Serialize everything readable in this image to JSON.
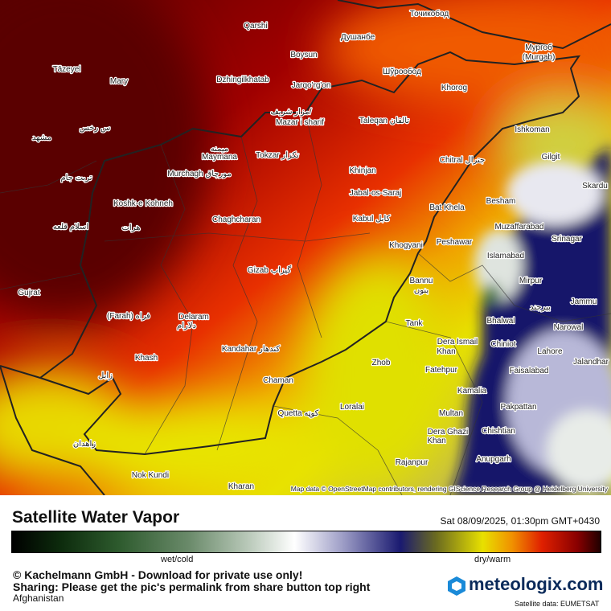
{
  "map": {
    "attribution": "Map data © OpenStreetMap contributors, rendering GIScience Research Group @ Heidelberg University",
    "places": [
      "Qarshi",
      "Душанбе",
      "Точикобод",
      "Boysun",
      "Мургоб",
      "(Murgab)",
      "Tāzeyel",
      "Mary",
      "Dzhingilkhatab",
      "Jarqo'rg'on",
      "Шўрообод",
      "Khorog",
      "مزار شریف/",
      "Mazar i sharif",
      "Taleqan تالقان",
      "Ishkoman",
      "مشهد",
      "س رخس",
      "میمنه",
      "Maymana",
      "Tokzar تکزار",
      "Chitral جترال",
      "Gilgit",
      "Murchagh مورچاق",
      "Khinjan",
      "تربت جام",
      "Skardu",
      "Jabal-os-Saraj",
      "Bat Khela",
      "Besham",
      "Koshk-e Kohneh",
      "Chaghcharan",
      "Kabul کابل",
      "Muzaffarabad",
      "اسلام قلعه",
      "هرات",
      "Srinagar",
      "Peshawar",
      "Khogyani",
      "Islamabad",
      "Gizab گیزاب",
      "Bannu",
      "بنوں",
      "Mirpur",
      "Jammu",
      "بیرجند",
      "Gujrat",
      "(Farah) فراه",
      "Delaram",
      "دلارام",
      "Bhalwal",
      "Tank",
      "Narowal",
      "Chiniot",
      "Dera Ismail",
      "Khan",
      "Lahore",
      "Kandahar کندهار",
      "Khash",
      "Jalandhar",
      "Zhob",
      "Fatehpur",
      "Faisalabad",
      "زابل",
      "Chaman",
      "Kamalia",
      "Loralai",
      "Quetta کوټه",
      "Multan",
      "Pakpattan",
      "Dera Ghazi",
      "Khan",
      "Chishtian",
      "زاهدان",
      "Rajanpur",
      "Anupgarh",
      "Nok Kundi",
      "Kharan"
    ]
  },
  "footer": {
    "title": "Satellite Water Vapor",
    "timestamp": "Sat 08/09/2025, 01:30pm GMT+0430",
    "scale_low": "wet/cold",
    "scale_high": "dry/warm",
    "copyright": "© Kachelmann GmbH - Download for private use only!",
    "sharing": "Sharing: Please get the pic's permalink from share button top right",
    "region": "Afghanistan",
    "brand": "meteologix.com",
    "source": "Satellite data: EUMETSAT"
  }
}
